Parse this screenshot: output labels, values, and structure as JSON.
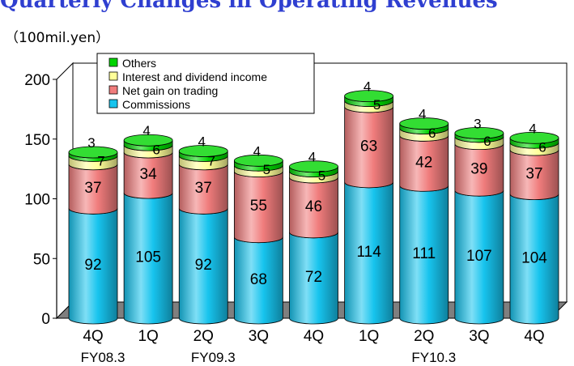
{
  "page_title": "Quarterly Changes in Operating Revenues",
  "chart_data": {
    "type": "bar",
    "stacked": true,
    "unit_label": "（100mil.yen）",
    "categories": [
      "4Q",
      "1Q",
      "2Q",
      "3Q",
      "4Q",
      "1Q",
      "2Q",
      "3Q",
      "4Q"
    ],
    "fiscal_years": [
      {
        "label": "FY08.3",
        "category_index": 0
      },
      {
        "label": "FY09.3",
        "category_index": 2
      },
      {
        "label": "FY10.3",
        "category_index": 6
      }
    ],
    "series": [
      {
        "name": "Commissions",
        "color": "#17c4ee",
        "values": [
          92,
          105,
          92,
          68,
          72,
          114,
          111,
          107,
          104
        ]
      },
      {
        "name": "Net gain on trading",
        "color": "#f07c7c",
        "values": [
          37,
          34,
          37,
          55,
          46,
          63,
          42,
          39,
          37
        ]
      },
      {
        "name": "Interest and dividend income",
        "color": "#ffff99",
        "values": [
          7,
          6,
          7,
          5,
          5,
          5,
          6,
          6,
          6
        ]
      },
      {
        "name": "Others",
        "color": "#00d400",
        "values": [
          3,
          4,
          4,
          4,
          4,
          4,
          4,
          3,
          4
        ]
      }
    ],
    "legend_order": [
      "Others",
      "Interest and dividend income",
      "Net gain on trading",
      "Commissions"
    ],
    "legend_position": "top-left",
    "yticks": [
      0,
      50,
      100,
      150,
      200
    ],
    "ylim": [
      0,
      200
    ],
    "grid": false
  }
}
